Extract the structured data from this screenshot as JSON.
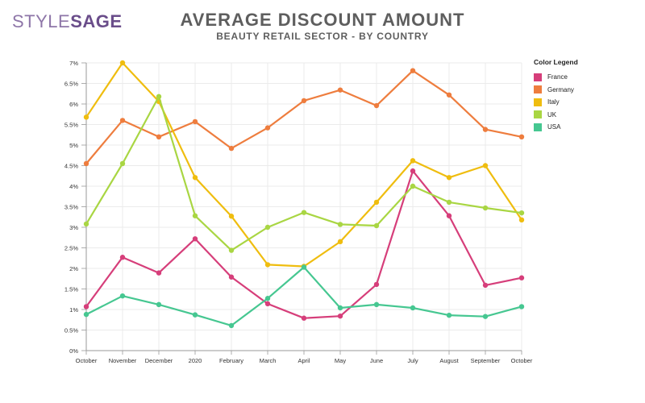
{
  "logo": {
    "part1": "STYLE",
    "part2": "SAGE"
  },
  "header": {
    "title": "AVERAGE DISCOUNT AMOUNT",
    "subtitle": "BEAUTY RETAIL SECTOR - BY COUNTRY"
  },
  "legend": {
    "title": "Color Legend"
  },
  "chart_data": {
    "type": "line",
    "title": "AVERAGE DISCOUNT AMOUNT",
    "subtitle": "BEAUTY RETAIL SECTOR - BY COUNTRY",
    "xlabel": "",
    "ylabel": "",
    "ylim": [
      0,
      7
    ],
    "yticks": [
      0,
      0.5,
      1,
      1.5,
      2,
      2.5,
      3,
      3.5,
      4,
      4.5,
      5,
      5.5,
      6,
      6.5,
      7
    ],
    "ytick_labels": [
      "0%",
      "0.5%",
      "1%",
      "1.5%",
      "2%",
      "2.5%",
      "3%",
      "3.5%",
      "4%",
      "4.5%",
      "5%",
      "5.5%",
      "6%",
      "6.5%",
      "7%"
    ],
    "grid": true,
    "legend_position": "top-right",
    "categories": [
      "October",
      "November",
      "December",
      "2020",
      "February",
      "March",
      "April",
      "May",
      "June",
      "July",
      "August",
      "September",
      "October"
    ],
    "series": [
      {
        "name": "France",
        "color": "#d63e7a",
        "values": [
          1.07,
          2.27,
          1.89,
          2.72,
          1.79,
          1.14,
          0.79,
          0.84,
          1.61,
          4.37,
          3.28,
          1.59,
          1.77
        ]
      },
      {
        "name": "Germany",
        "color": "#ee7d3e",
        "values": [
          4.55,
          5.6,
          5.2,
          5.57,
          4.92,
          5.42,
          6.08,
          6.34,
          5.96,
          6.81,
          6.22,
          5.38,
          5.2
        ]
      },
      {
        "name": "Italy",
        "color": "#efbd0f",
        "values": [
          5.68,
          7.0,
          6.06,
          4.21,
          3.27,
          2.09,
          2.05,
          2.65,
          3.61,
          4.62,
          4.21,
          4.5,
          3.18
        ]
      },
      {
        "name": "UK",
        "color": "#a9d643",
        "values": [
          3.08,
          4.55,
          6.18,
          3.28,
          2.44,
          3.0,
          3.36,
          3.07,
          3.04,
          4.0,
          3.61,
          3.47,
          3.35
        ]
      },
      {
        "name": "USA",
        "color": "#46c791",
        "values": [
          0.88,
          1.33,
          1.12,
          0.87,
          0.61,
          1.27,
          2.03,
          1.04,
          1.12,
          1.04,
          0.86,
          0.83,
          1.07
        ]
      }
    ]
  }
}
